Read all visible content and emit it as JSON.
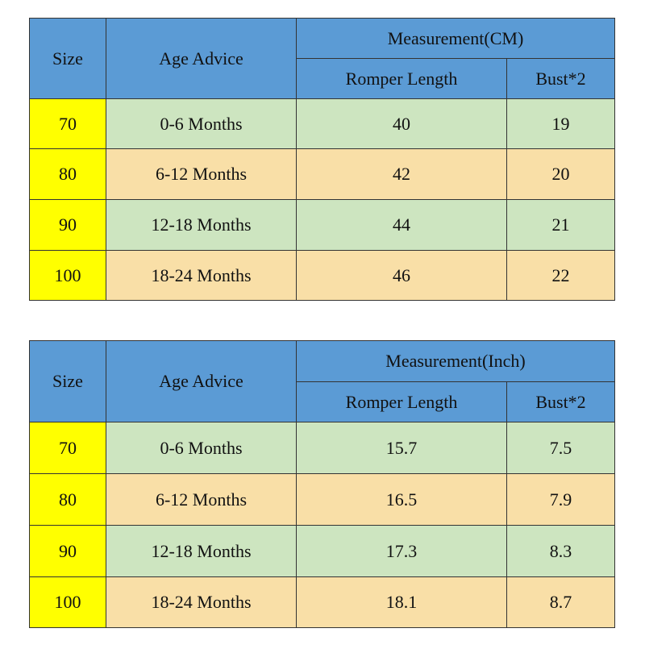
{
  "tables": [
    {
      "header": {
        "size": "Size",
        "age": "Age Advice",
        "measurement": "Measurement(CM)",
        "sub": [
          "Romper Length",
          "Bust*2"
        ]
      },
      "rows": [
        [
          "70",
          "0-6 Months",
          "40",
          "19"
        ],
        [
          "80",
          "6-12 Months",
          "42",
          "20"
        ],
        [
          "90",
          "12-18 Months",
          "44",
          "21"
        ],
        [
          "100",
          "18-24 Months",
          "46",
          "22"
        ]
      ]
    },
    {
      "header": {
        "size": "Size",
        "age": "Age Advice",
        "measurement": "Measurement(Inch)",
        "sub": [
          "Romper Length",
          "Bust*2"
        ]
      },
      "rows": [
        [
          "70",
          "0-6 Months",
          "15.7",
          "7.5"
        ],
        [
          "80",
          "6-12 Months",
          "16.5",
          "7.9"
        ],
        [
          "90",
          "12-18 Months",
          "17.3",
          "8.3"
        ],
        [
          "100",
          "18-24 Months",
          "18.1",
          "8.7"
        ]
      ]
    }
  ]
}
